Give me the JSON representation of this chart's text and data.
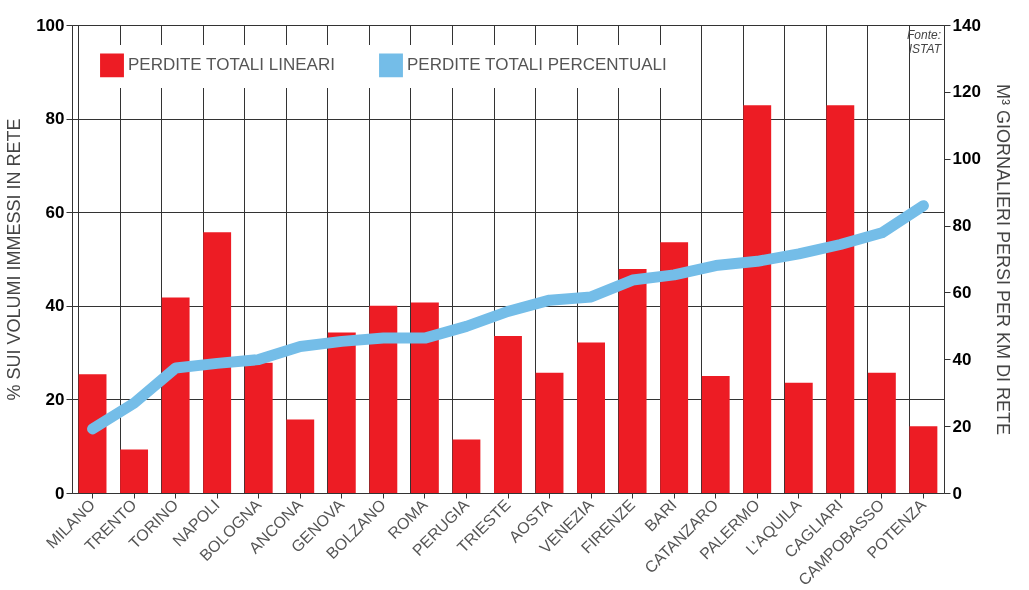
{
  "chart_data": {
    "type": "bar",
    "categories": [
      "MILANO",
      "TRENTO",
      "TORINO",
      "NAPOLI",
      "BOLOGNA",
      "ANCONA",
      "GENOVA",
      "BOLZANO",
      "ROMA",
      "PERUGIA",
      "TRIESTE",
      "AOSTA",
      "VENEZIA",
      "FIRENZE",
      "BARI",
      "CATANZARO",
      "PALERMO",
      "L'AQUILA",
      "CAGLIARI",
      "CAMPOBASSO",
      "POTENZA"
    ],
    "series": [
      {
        "name": "PERDITE TOTALI LINEARI",
        "axis": "y2",
        "color": "#ed1c24",
        "values": [
          35.5,
          13,
          58.5,
          78,
          39,
          22,
          48,
          56,
          57,
          16,
          47,
          36,
          45,
          67,
          75,
          35,
          116,
          33,
          116,
          36,
          20
        ]
      },
      {
        "name": "PERDITE TOTALI PERCENTUALI",
        "type": "line",
        "color": "#74bde8",
        "values": [
          13.7,
          19.2,
          26.7,
          27.7,
          28.5,
          31.3,
          32.4,
          33.1,
          33.1,
          35.6,
          38.8,
          41.2,
          41.9,
          45.5,
          46.6,
          48.6,
          49.5,
          51.1,
          53.1,
          55.6,
          61.4
        ]
      }
    ],
    "ylabel": "% SUI VOLUMI IMMESSI IN RETE",
    "y2label": "M³ GIORNALIERI PERSI PER KM DI RETE",
    "ylim": [
      0,
      100
    ],
    "yticks": [
      0,
      20,
      40,
      60,
      80,
      100
    ],
    "y2lim": [
      0,
      140
    ],
    "y2ticks": [
      0,
      20,
      40,
      60,
      80,
      100,
      120,
      140
    ],
    "annotations": [
      "Fonte: ISTAT"
    ],
    "grid": true,
    "legend": "top left"
  }
}
